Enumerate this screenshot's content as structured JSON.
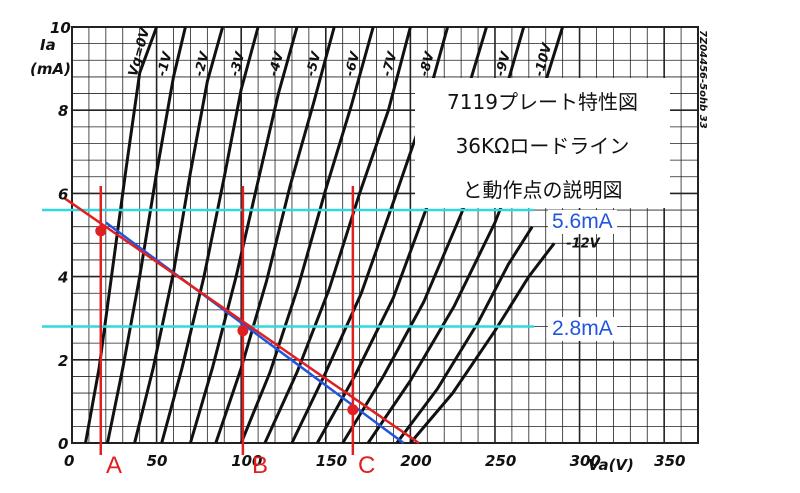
{
  "chart_data": {
    "type": "line",
    "title": "7119プレート特性図",
    "subtitle_lines": [
      "36KΩロードライン",
      "と動作点の説明図"
    ],
    "side_code": "7Z04456-5ohb 33",
    "y_axis_label": {
      "symbol": "Ia",
      "unit": "(mA)"
    },
    "x_axis_label": "Va(V)",
    "xlim": [
      0,
      370
    ],
    "ylim": [
      0,
      10
    ],
    "x_ticks": [
      0,
      50,
      100,
      150,
      200,
      250,
      300,
      350
    ],
    "y_ticks": [
      0,
      2,
      4,
      6,
      8,
      10
    ],
    "grid": true,
    "series": [
      {
        "name": "Vg=0V",
        "x": [
          8,
          16,
          24,
          32,
          40,
          50
        ],
        "y": [
          0,
          1.8,
          4.2,
          6.6,
          8.9,
          10
        ]
      },
      {
        "name": "-1V",
        "x": [
          21,
          30,
          40,
          50,
          60,
          67
        ],
        "y": [
          0,
          1.8,
          4.0,
          6.5,
          8.8,
          10
        ]
      },
      {
        "name": "-2V",
        "x": [
          37,
          48,
          60,
          70,
          80,
          89
        ],
        "y": [
          0,
          1.8,
          4.1,
          6.5,
          8.7,
          10
        ]
      },
      {
        "name": "-3V",
        "x": [
          53,
          65,
          78,
          90,
          100,
          110
        ],
        "y": [
          0,
          1.8,
          4.0,
          6.4,
          8.5,
          10
        ]
      },
      {
        "name": "-4V",
        "x": [
          70,
          83,
          97,
          110,
          122,
          133
        ],
        "y": [
          0,
          1.8,
          4.0,
          6.3,
          8.4,
          10
        ]
      },
      {
        "name": "-5V",
        "x": [
          85,
          100,
          115,
          129,
          143,
          155
        ],
        "y": [
          0,
          1.8,
          3.9,
          6.2,
          8.2,
          10
        ]
      },
      {
        "name": "-6V",
        "x": [
          100,
          117,
          134,
          150,
          165,
          178
        ],
        "y": [
          0,
          1.7,
          3.8,
          6.1,
          8.1,
          10
        ]
      },
      {
        "name": "-7V",
        "x": [
          114,
          133,
          152,
          170,
          187,
          200
        ],
        "y": [
          0,
          1.7,
          3.7,
          6.0,
          8.0,
          10
        ]
      },
      {
        "name": "-8V",
        "x": [
          130,
          150,
          171,
          190,
          207,
          222
        ],
        "y": [
          0,
          1.7,
          3.6,
          5.8,
          7.8,
          10
        ]
      },
      {
        "name": "",
        "x": [
          145,
          167,
          190,
          210,
          228,
          245
        ],
        "y": [
          0,
          1.6,
          3.5,
          5.7,
          7.7,
          10
        ]
      },
      {
        "name": "-9V",
        "x": [
          160,
          184,
          208,
          230,
          250,
          267
        ],
        "y": [
          0,
          1.6,
          3.4,
          5.5,
          7.6,
          10
        ]
      },
      {
        "name": "-10V",
        "x": [
          175,
          200,
          226,
          250,
          270,
          290
        ],
        "y": [
          0,
          1.5,
          3.3,
          5.3,
          7.4,
          10
        ]
      },
      {
        "name": "",
        "x": [
          192,
          216,
          240,
          258,
          272
        ],
        "y": [
          0,
          1.3,
          2.9,
          4.3,
          5.2
        ]
      },
      {
        "name": "-12V",
        "x": [
          200,
          225,
          250,
          270,
          285
        ],
        "y": [
          0,
          1.2,
          2.7,
          4.0,
          4.8
        ]
      }
    ],
    "load_line": {
      "name": "36KΩ",
      "x": [
        -5,
        205
      ],
      "y": [
        5.9,
        0
      ]
    },
    "load_line_blue": {
      "x": [
        20,
        196
      ],
      "y": [
        5.3,
        0
      ]
    },
    "hlines": [
      {
        "label": "5.6mA",
        "y": 5.6
      },
      {
        "label": "2.8mA",
        "y": 2.8
      }
    ],
    "vlines": [
      {
        "label": "A",
        "x": 17
      },
      {
        "label": "B",
        "x": 101
      },
      {
        "label": "C",
        "x": 166
      }
    ],
    "operating_points": [
      {
        "x": 17,
        "y": 5.1
      },
      {
        "x": 101,
        "y": 2.7
      },
      {
        "x": 166,
        "y": 0.8
      }
    ],
    "colors": {
      "load_line": "#e02020",
      "blue_line": "#2255dd",
      "hline": "#30d8e0",
      "curve": "#111111",
      "grid": "#222222"
    }
  }
}
